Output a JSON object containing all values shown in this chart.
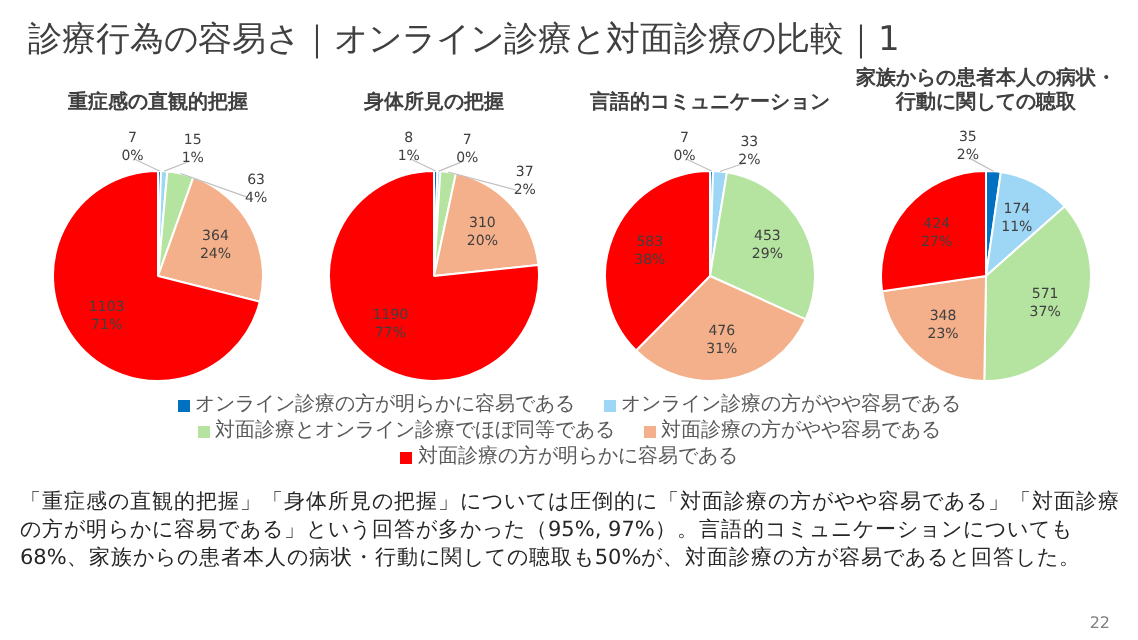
{
  "chart_data": [
    {
      "type": "pie",
      "title": "重症感の直観的把握",
      "categories": [
        "オンライン診療の方が明らかに容易である",
        "オンライン診療の方がやや容易である",
        "対面診療とオンライン診療でほぼ同等である",
        "対面診療の方がやや容易である",
        "対面診療の方が明らかに容易である"
      ],
      "values": [
        7,
        15,
        63,
        364,
        1103
      ],
      "colors": [
        "#0070c0",
        "#9dd7f5",
        "#b5e3a0",
        "#f4b08a",
        "#ff0000"
      ],
      "value_labels": [
        "7\n0%",
        "15\n1%",
        "63\n4%",
        "364\n24%",
        "1103\n71%"
      ],
      "legend": "bottom",
      "annotations": [
        "診療行為の容易さ｜オンライン診療と対面診療の比較｜1",
        "「重症感の直観的把握」「身体所見の把握」については圧倒的に「対面診療の方がやや容易である」「対面診療の方が明らかに容易である」という回答が多かった（95%, 97%）。言語的コミュニケーションについても68%、家族からの患者本人の病状・行動に関しての聴取も50%が、対面診療の方が容易であると回答した。",
        "22"
      ]
    },
    {
      "type": "pie",
      "title": "身体所見の把握",
      "values": [
        8,
        7,
        37,
        310,
        1190
      ],
      "colors": [
        "#0070c0",
        "#9dd7f5",
        "#b5e3a0",
        "#f4b08a",
        "#ff0000"
      ],
      "value_labels": [
        "8\n1%",
        "7\n0%",
        "37\n2%",
        "310\n20%",
        "1190\n77%"
      ]
    },
    {
      "type": "pie",
      "title": "言語的コミュニケーション",
      "values": [
        7,
        33,
        453,
        476,
        583
      ],
      "colors": [
        "#0070c0",
        "#9dd7f5",
        "#b5e3a0",
        "#f4b08a",
        "#ff0000"
      ],
      "value_labels": [
        "7\n0%",
        "33\n2%",
        "453\n29%",
        "476\n31%",
        "583\n38%"
      ]
    },
    {
      "type": "pie",
      "title": "家族からの患者本人の病状・行動に関しての聴取",
      "values": [
        35,
        174,
        571,
        348,
        424
      ],
      "colors": [
        "#0070c0",
        "#9dd7f5",
        "#b5e3a0",
        "#f4b08a",
        "#ff0000"
      ],
      "value_labels": [
        "35\n2%",
        "174\n11%",
        "571\n37%",
        "348\n23%",
        "424\n27%"
      ]
    }
  ]
}
